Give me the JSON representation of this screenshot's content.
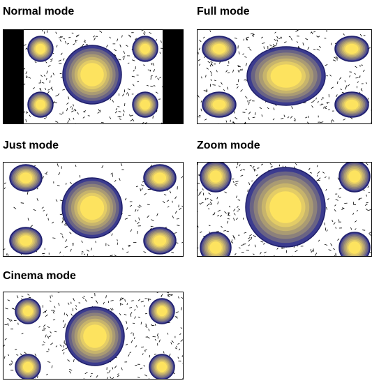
{
  "colors": {
    "ring_outer": "#3b3b8f",
    "ring_inner": "#fde35f",
    "bar": "#000000",
    "frame": "#000000",
    "background": "#ffffff",
    "speckle": "#000000"
  },
  "modes": [
    {
      "label": "Normal mode"
    },
    {
      "label": "Full mode"
    },
    {
      "label": "Just mode"
    },
    {
      "label": "Zoom mode"
    },
    {
      "label": "Cinema mode"
    }
  ]
}
